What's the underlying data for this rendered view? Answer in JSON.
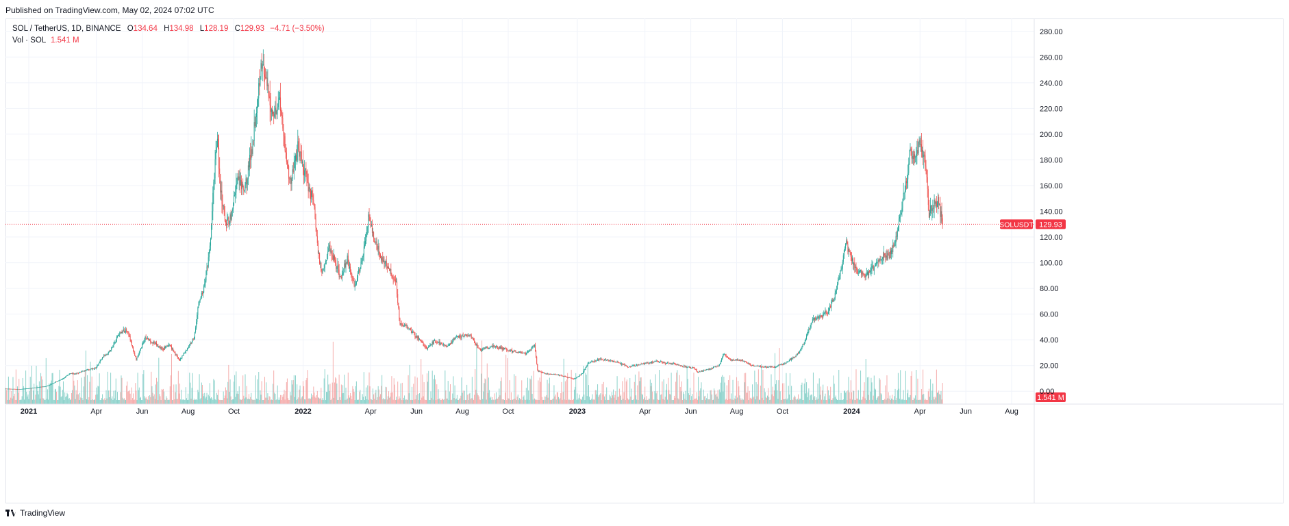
{
  "published": "Published on TradingView.com, May 02, 2024 07:02 UTC",
  "legend": {
    "symbol": "SOL / TetherUS, 1D, BINANCE",
    "o_key": "O",
    "o_val": "134.64",
    "h_key": "H",
    "h_val": "134.98",
    "l_key": "L",
    "l_val": "128.19",
    "c_key": "C",
    "c_val": "129.93",
    "change": "−4.71 (−3.50%)",
    "vol_label": "Vol · SOL",
    "vol_val": "1.541 M"
  },
  "price_tag": {
    "symbol": "SOLUSDT",
    "value": "129.93"
  },
  "vol_tag": "1.541 M",
  "footer": {
    "brand": "TradingView"
  },
  "colors": {
    "up": "#26a69a",
    "down": "#ef5350",
    "up_vol": "#7fcdc5",
    "down_vol": "#f4a3a2",
    "price_line": "#f23645"
  },
  "chart_data": {
    "type": "candlestick",
    "symbol": "SOLUSDT",
    "interval": "1D",
    "ylim": [
      -10,
      290
    ],
    "yticks": [
      280,
      260,
      240,
      220,
      200,
      180,
      160,
      140,
      120,
      100,
      80,
      60,
      40,
      20,
      0
    ],
    "ytick_labels": [
      "280.00",
      "260.00",
      "240.00",
      "220.00",
      "200.00",
      "180.00",
      "160.00",
      "140.00",
      "120.00",
      "100.00",
      "80.00",
      "60.00",
      "40.00",
      "20.00",
      "0.00"
    ],
    "x_ticks": [
      {
        "label": "2021",
        "date": "2021-01-01",
        "bold": true
      },
      {
        "label": "Apr",
        "date": "2021-04-01"
      },
      {
        "label": "Jun",
        "date": "2021-06-01"
      },
      {
        "label": "Aug",
        "date": "2021-08-01"
      },
      {
        "label": "Oct",
        "date": "2021-10-01"
      },
      {
        "label": "2022",
        "date": "2022-01-01",
        "bold": true
      },
      {
        "label": "Apr",
        "date": "2022-04-01"
      },
      {
        "label": "Jun",
        "date": "2022-06-01"
      },
      {
        "label": "Aug",
        "date": "2022-08-01"
      },
      {
        "label": "Oct",
        "date": "2022-10-01"
      },
      {
        "label": "2023",
        "date": "2023-01-01",
        "bold": true
      },
      {
        "label": "Apr",
        "date": "2023-04-01"
      },
      {
        "label": "Jun",
        "date": "2023-06-01"
      },
      {
        "label": "Aug",
        "date": "2023-08-01"
      },
      {
        "label": "Oct",
        "date": "2023-10-01"
      },
      {
        "label": "2024",
        "date": "2024-01-01",
        "bold": true
      },
      {
        "label": "Apr",
        "date": "2024-04-01"
      },
      {
        "label": "Jun",
        "date": "2024-06-01"
      },
      {
        "label": "Aug",
        "date": "2024-08-01"
      }
    ],
    "x_start": "2020-12-01",
    "x_end": "2024-08-31",
    "last_close": 129.93,
    "close_path": [
      [
        "2020-12-01",
        2.0
      ],
      [
        "2020-12-20",
        1.6
      ],
      [
        "2021-01-05",
        2.5
      ],
      [
        "2021-01-25",
        4.0
      ],
      [
        "2021-02-05",
        7.0
      ],
      [
        "2021-02-15",
        9.5
      ],
      [
        "2021-02-25",
        14.0
      ],
      [
        "2021-03-05",
        13.5
      ],
      [
        "2021-03-15",
        16.0
      ],
      [
        "2021-03-31",
        18.0
      ],
      [
        "2021-04-10",
        27.0
      ],
      [
        "2021-04-20",
        32.0
      ],
      [
        "2021-05-01",
        45.0
      ],
      [
        "2021-05-12",
        48.0
      ],
      [
        "2021-05-20",
        32.0
      ],
      [
        "2021-05-24",
        24.0
      ],
      [
        "2021-06-05",
        42.0
      ],
      [
        "2021-06-15",
        38.0
      ],
      [
        "2021-06-28",
        33.0
      ],
      [
        "2021-07-08",
        36.0
      ],
      [
        "2021-07-20",
        24.0
      ],
      [
        "2021-08-01",
        34.0
      ],
      [
        "2021-08-09",
        42.0
      ],
      [
        "2021-08-15",
        68.0
      ],
      [
        "2021-08-22",
        80.0
      ],
      [
        "2021-08-30",
        110.0
      ],
      [
        "2021-09-06",
        180.0
      ],
      [
        "2021-09-09",
        200.0
      ],
      [
        "2021-09-13",
        155.0
      ],
      [
        "2021-09-20",
        130.0
      ],
      [
        "2021-09-28",
        138.0
      ],
      [
        "2021-10-05",
        165.0
      ],
      [
        "2021-10-15",
        155.0
      ],
      [
        "2021-10-25",
        190.0
      ],
      [
        "2021-11-02",
        232.0
      ],
      [
        "2021-11-06",
        258.0
      ],
      [
        "2021-11-15",
        232.0
      ],
      [
        "2021-11-22",
        215.0
      ],
      [
        "2021-12-01",
        228.0
      ],
      [
        "2021-12-10",
        180.0
      ],
      [
        "2021-12-15",
        162.0
      ],
      [
        "2021-12-25",
        190.0
      ],
      [
        "2022-01-01",
        175.0
      ],
      [
        "2022-01-08",
        160.0
      ],
      [
        "2022-01-15",
        148.0
      ],
      [
        "2022-01-21",
        108.0
      ],
      [
        "2022-01-26",
        92.0
      ],
      [
        "2022-02-05",
        112.0
      ],
      [
        "2022-02-10",
        105.0
      ],
      [
        "2022-02-20",
        88.0
      ],
      [
        "2022-03-01",
        103.0
      ],
      [
        "2022-03-10",
        82.0
      ],
      [
        "2022-03-20",
        100.0
      ],
      [
        "2022-03-29",
        135.0
      ],
      [
        "2022-04-05",
        120.0
      ],
      [
        "2022-04-15",
        104.0
      ],
      [
        "2022-04-25",
        96.0
      ],
      [
        "2022-05-05",
        84.0
      ],
      [
        "2022-05-10",
        52.0
      ],
      [
        "2022-05-20",
        50.0
      ],
      [
        "2022-06-05",
        40.0
      ],
      [
        "2022-06-15",
        33.0
      ],
      [
        "2022-06-25",
        39.0
      ],
      [
        "2022-07-10",
        35.0
      ],
      [
        "2022-07-25",
        42.0
      ],
      [
        "2022-08-10",
        44.0
      ],
      [
        "2022-08-25",
        32.0
      ],
      [
        "2022-09-10",
        35.0
      ],
      [
        "2022-09-25",
        33.0
      ],
      [
        "2022-10-10",
        31.0
      ],
      [
        "2022-10-25",
        29.0
      ],
      [
        "2022-11-05",
        36.0
      ],
      [
        "2022-11-09",
        16.0
      ],
      [
        "2022-11-20",
        13.5
      ],
      [
        "2022-12-05",
        13.0
      ],
      [
        "2022-12-28",
        9.5
      ],
      [
        "2023-01-08",
        14.0
      ],
      [
        "2023-01-15",
        22.0
      ],
      [
        "2023-02-01",
        25.0
      ],
      [
        "2023-02-20",
        23.0
      ],
      [
        "2023-03-10",
        19.0
      ],
      [
        "2023-03-25",
        21.0
      ],
      [
        "2023-04-15",
        23.0
      ],
      [
        "2023-05-10",
        21.0
      ],
      [
        "2023-06-05",
        18.0
      ],
      [
        "2023-06-10",
        15.0
      ],
      [
        "2023-06-25",
        17.0
      ],
      [
        "2023-07-10",
        21.0
      ],
      [
        "2023-07-14",
        29.0
      ],
      [
        "2023-07-25",
        24.0
      ],
      [
        "2023-08-10",
        24.0
      ],
      [
        "2023-08-20",
        20.0
      ],
      [
        "2023-09-05",
        19.0
      ],
      [
        "2023-09-20",
        19.0
      ],
      [
        "2023-10-05",
        22.0
      ],
      [
        "2023-10-20",
        28.0
      ],
      [
        "2023-10-30",
        38.0
      ],
      [
        "2023-11-10",
        55.0
      ],
      [
        "2023-11-20",
        58.0
      ],
      [
        "2023-12-01",
        62.0
      ],
      [
        "2023-12-10",
        75.0
      ],
      [
        "2023-12-18",
        95.0
      ],
      [
        "2023-12-25",
        115.0
      ],
      [
        "2024-01-02",
        102.0
      ],
      [
        "2024-01-10",
        92.0
      ],
      [
        "2024-01-20",
        90.0
      ],
      [
        "2024-02-01",
        98.0
      ],
      [
        "2024-02-10",
        104.0
      ],
      [
        "2024-02-20",
        107.0
      ],
      [
        "2024-02-28",
        115.0
      ],
      [
        "2024-03-05",
        135.0
      ],
      [
        "2024-03-13",
        160.0
      ],
      [
        "2024-03-18",
        185.0
      ],
      [
        "2024-03-25",
        180.0
      ],
      [
        "2024-04-01",
        195.0
      ],
      [
        "2024-04-08",
        178.0
      ],
      [
        "2024-04-13",
        140.0
      ],
      [
        "2024-04-20",
        145.0
      ],
      [
        "2024-04-25",
        148.0
      ],
      [
        "2024-05-01",
        129.93
      ]
    ]
  }
}
